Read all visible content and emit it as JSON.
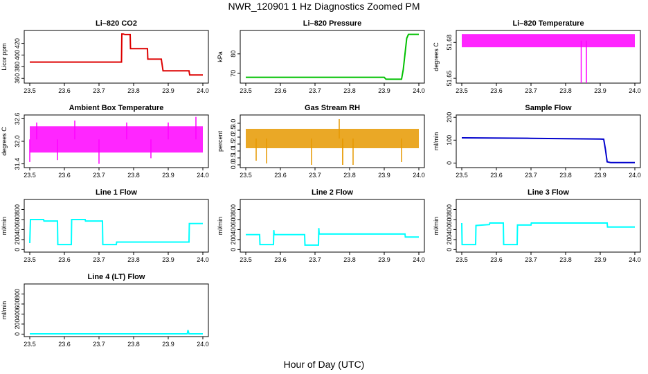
{
  "title": "NWR_120901  1 Hz Diagnostics Zoomed PM",
  "xlabel": "Hour of Day (UTC)",
  "chart_data": [
    {
      "id": "co2",
      "type": "line",
      "title": "Li–820 CO2",
      "ylabel": "Licor ppm",
      "color": "#dd0000",
      "xlim": [
        23.5,
        24.0
      ],
      "ylim": [
        352,
        442
      ],
      "yticks": [
        360,
        380,
        400,
        420
      ],
      "xticks": [
        23.5,
        23.6,
        23.7,
        23.8,
        23.9,
        24.0
      ],
      "x": [
        23.5,
        23.765,
        23.766,
        23.77,
        23.775,
        23.78,
        23.79,
        23.791,
        23.8,
        23.82,
        23.84,
        23.841,
        23.86,
        23.88,
        23.885,
        23.9,
        23.92,
        23.94,
        23.96,
        23.962,
        23.99,
        24.0
      ],
      "y": [
        388,
        388,
        436,
        436,
        435,
        435,
        435,
        411,
        411,
        411,
        411,
        393,
        393,
        393,
        373,
        373,
        373,
        373,
        373,
        366,
        366,
        366
      ]
    },
    {
      "id": "pressure",
      "type": "line",
      "title": "Li–820 Pressure",
      "ylabel": "kPa",
      "color": "#00c000",
      "xlim": [
        23.5,
        24.0
      ],
      "ylim": [
        65,
        92
      ],
      "yticks": [
        70,
        80
      ],
      "xticks": [
        23.5,
        23.6,
        23.7,
        23.8,
        23.9,
        24.0
      ],
      "x": [
        23.5,
        23.7,
        23.9,
        23.905,
        23.93,
        23.95,
        23.955,
        23.96,
        23.965,
        23.97,
        24.0
      ],
      "y": [
        68,
        68,
        68,
        67,
        67,
        67,
        72,
        80,
        88,
        90,
        90
      ]
    },
    {
      "id": "licor_temp",
      "type": "band",
      "title": "Li–820 Temperature",
      "ylabel": "degrees C",
      "color": "#ff00ff",
      "xlim": [
        23.5,
        24.0
      ],
      "ylim": [
        51.646,
        51.69
      ],
      "yticks": [
        51.65,
        51.68
      ],
      "ytick_labels": [
        "51.65",
        "51.68"
      ],
      "xticks": [
        23.5,
        23.6,
        23.7,
        23.8,
        23.9,
        24.0
      ],
      "band": [
        51.676,
        51.687
      ],
      "x": [
        23.845,
        23.86
      ],
      "y": [
        51.646,
        51.646
      ]
    },
    {
      "id": "ambient_temp",
      "type": "band",
      "title": "Ambient Box Temperature",
      "ylabel": "degrees C",
      "color": "#ff00ff",
      "xlim": [
        23.5,
        24.0
      ],
      "ylim": [
        31.3,
        32.7
      ],
      "yticks": [
        31.4,
        32.0,
        32.6
      ],
      "ytick_labels": [
        "31.4",
        "32.0",
        "32.6"
      ],
      "xticks": [
        23.5,
        23.6,
        23.7,
        23.8,
        23.9,
        24.0
      ],
      "band": [
        31.7,
        32.4
      ],
      "x": [
        23.5,
        23.52,
        23.58,
        23.63,
        23.7,
        23.78,
        23.85,
        23.9,
        23.98
      ],
      "y": [
        31.45,
        32.5,
        31.5,
        32.55,
        31.4,
        32.5,
        31.55,
        32.5,
        32.65
      ]
    },
    {
      "id": "gas_rh",
      "type": "band",
      "title": "Gas Stream RH",
      "ylabel": "percent",
      "color": "#e69900",
      "xlim": [
        23.5,
        24.0
      ],
      "ylim": [
        -0.2,
        3.6
      ],
      "yticks": [
        0.0,
        0.5,
        1.0,
        1.5,
        2.0,
        2.5,
        3.0
      ],
      "ytick_labels": [
        "0.0",
        "0.5",
        "1.0",
        "1.5",
        "2.0",
        "2.5",
        "3.0"
      ],
      "xticks": [
        23.5,
        23.6,
        23.7,
        23.8,
        23.9,
        24.0
      ],
      "band": [
        1.2,
        2.6
      ],
      "x": [
        23.53,
        23.56,
        23.69,
        23.77,
        23.78,
        23.81,
        23.78,
        23.95
      ],
      "y": [
        0.3,
        0.1,
        0.0,
        3.3,
        0.0,
        0.0,
        0.0,
        0.2
      ]
    },
    {
      "id": "sample_flow",
      "type": "line",
      "title": "Sample Flow",
      "ylabel": "ml/min",
      "color": "#0000cc",
      "xlim": [
        23.5,
        24.0
      ],
      "ylim": [
        -20,
        210
      ],
      "yticks": [
        0,
        100,
        200
      ],
      "xticks": [
        23.5,
        23.6,
        23.7,
        23.8,
        23.9,
        24.0
      ],
      "x": [
        23.5,
        23.7,
        23.9,
        23.91,
        23.915,
        23.92,
        23.93,
        24.0
      ],
      "y": [
        110,
        108,
        105,
        104,
        60,
        5,
        2,
        2
      ]
    },
    {
      "id": "line1",
      "type": "line",
      "title": "Line 1 Flow",
      "ylabel": "ml/min",
      "color": "#00ffff",
      "xlim": [
        23.5,
        24.0
      ],
      "ylim": [
        -50,
        1000
      ],
      "yticks": [
        0,
        200,
        400,
        600,
        800
      ],
      "xticks": [
        23.5,
        23.6,
        23.7,
        23.8,
        23.9,
        24.0
      ],
      "x": [
        23.5,
        23.502,
        23.54,
        23.541,
        23.58,
        23.581,
        23.62,
        23.621,
        23.66,
        23.661,
        23.71,
        23.711,
        23.75,
        23.751,
        23.95,
        23.96,
        23.961,
        24.0
      ],
      "y": [
        130,
        600,
        600,
        570,
        570,
        100,
        100,
        600,
        600,
        570,
        570,
        100,
        100,
        150,
        150,
        150,
        520,
        520
      ]
    },
    {
      "id": "line2",
      "type": "line",
      "title": "Line 2 Flow",
      "ylabel": "ml/min",
      "color": "#00ffff",
      "xlim": [
        23.5,
        24.0
      ],
      "ylim": [
        -50,
        1000
      ],
      "yticks": [
        0,
        200,
        400,
        600,
        800
      ],
      "xticks": [
        23.5,
        23.6,
        23.7,
        23.8,
        23.9,
        24.0
      ],
      "x": [
        23.5,
        23.54,
        23.541,
        23.58,
        23.581,
        23.582,
        23.67,
        23.671,
        23.71,
        23.711,
        23.712,
        23.96,
        23.961,
        24.0
      ],
      "y": [
        300,
        300,
        100,
        100,
        390,
        300,
        300,
        90,
        90,
        430,
        310,
        310,
        250,
        250
      ]
    },
    {
      "id": "line3",
      "type": "line",
      "title": "Line 3 Flow",
      "ylabel": "ml/min",
      "color": "#00ffff",
      "xlim": [
        23.5,
        24.0
      ],
      "ylim": [
        -50,
        1000
      ],
      "yticks": [
        0,
        200,
        400,
        600,
        800
      ],
      "xticks": [
        23.5,
        23.6,
        23.7,
        23.8,
        23.9,
        24.0
      ],
      "x": [
        23.5,
        23.501,
        23.502,
        23.54,
        23.541,
        23.58,
        23.581,
        23.62,
        23.621,
        23.66,
        23.661,
        23.7,
        23.701,
        23.92,
        23.921,
        24.0
      ],
      "y": [
        530,
        100,
        100,
        100,
        480,
        500,
        530,
        530,
        100,
        100,
        490,
        490,
        530,
        530,
        450,
        450
      ]
    },
    {
      "id": "line4",
      "type": "line",
      "title": "Line 4 (LT) Flow",
      "ylabel": "ml/min",
      "color": "#00ffff",
      "xlim": [
        23.5,
        24.0
      ],
      "ylim": [
        -50,
        1000
      ],
      "yticks": [
        0,
        200,
        400,
        600,
        800
      ],
      "xticks": [
        23.5,
        23.6,
        23.7,
        23.8,
        23.9,
        24.0
      ],
      "x": [
        23.5,
        23.955,
        23.957,
        23.96,
        24.0
      ],
      "y": [
        5,
        5,
        80,
        5,
        5
      ]
    }
  ]
}
